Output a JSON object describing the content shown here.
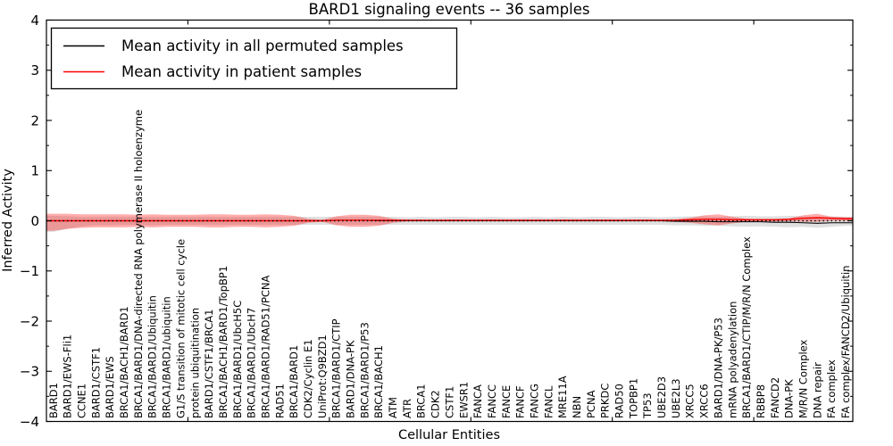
{
  "title": "BARD1 signaling events -- 36 samples",
  "legend": {
    "entries": [
      {
        "label": "Mean activity in all permuted samples",
        "color": "#000000"
      },
      {
        "label": "Mean activity in patient samples",
        "color": "#ff0000"
      }
    ],
    "position": "upper left"
  },
  "chart_data": {
    "type": "line",
    "title": "BARD1 signaling events -- 36 samples",
    "xlabel": "Cellular Entities",
    "ylabel": "Inferred Activity",
    "ylim": [
      -4,
      4
    ],
    "yticks": [
      -4,
      -3,
      -2,
      -1,
      0,
      1,
      2,
      3,
      4
    ],
    "y_minor_step": 0.5,
    "x_major_ticks": [
      10,
      20,
      30,
      40,
      50
    ],
    "grid": false,
    "zero_reference_line": {
      "value": 0,
      "style": "dotted",
      "color": "#000000"
    },
    "categories": [
      "BARD1",
      "BARD1/EWS-Fli1",
      "CCNE1",
      "BARD1/CSTF1",
      "BARD1/EWS",
      "BRCA1/BACH1/BARD1",
      "BRCA1/BARD1/DNA-directed RNA polymerase II holoenzyme",
      "BRCA1/BARD1/Ubiquitin",
      "BRCA1/BARD1/ubiquitin",
      "G1/S transition of mitotic cell cycle",
      "protein ubiquitination",
      "BARD1/CSTF1/BRCA1",
      "BRCA1/BACH1/BARD1/TopBP1",
      "BRCA1/BARD1/UbcH5C",
      "BRCA1/BARD1/UbcH7",
      "BRCA1/BARD1/RAD51/PCNA",
      "RAD51",
      "BRCA1/BARD1",
      "CDK2/Cyclin E1",
      "UniProt:Q9BZD1",
      "BRCA1/BARD1/CTIP",
      "BARD1/DNA-PK",
      "BRCA1/BARD1/P53",
      "BRCA1/BACH1",
      "ATM",
      "ATR",
      "BRCA1",
      "CDK2",
      "CSTF1",
      "EWSR1",
      "FANCA",
      "FANCC",
      "FANCE",
      "FANCF",
      "FANCG",
      "FANCL",
      "MRE11A",
      "NBN",
      "PCNA",
      "PRKDC",
      "RAD50",
      "TOPBP1",
      "TP53",
      "UBE2D3",
      "UBE2L3",
      "XRCC5",
      "XRCC6",
      "BARD1/DNA-PK/P53",
      "mRNA polyadenylation",
      "BRCA1/BARD1/CTIP/M/R/N Complex",
      "RBBP8",
      "FANCD2",
      "DNA-PK",
      "M/R/N Complex",
      "DNA repair",
      "FA complex",
      "FA complex/FANCD2/Ubiquitin"
    ],
    "series": [
      {
        "name": "Mean activity in all permuted samples",
        "color": "#000000",
        "values": [
          0,
          0,
          0,
          0,
          0,
          0,
          0,
          0,
          0,
          0,
          0,
          0,
          0,
          0,
          0,
          0,
          0,
          0,
          0,
          0,
          0.01,
          0.01,
          0.01,
          0,
          0,
          0,
          0,
          0,
          0,
          0,
          0,
          0,
          0,
          0,
          0,
          0,
          0,
          0,
          0,
          0,
          0,
          0,
          0,
          0,
          -0.01,
          -0.01,
          -0.01,
          -0.02,
          -0.02,
          -0.02,
          -0.02,
          -0.03,
          -0.03,
          -0.04,
          -0.05,
          -0.04,
          -0.04
        ]
      },
      {
        "name": "Mean activity in patient samples",
        "color": "#ff0000",
        "values": [
          0,
          0,
          0,
          0,
          0,
          0,
          0,
          0,
          0,
          0,
          0,
          0,
          0,
          0,
          0,
          0,
          0,
          0,
          0,
          0,
          0.01,
          0.01,
          0.01,
          0.01,
          0.01,
          0.01,
          0.01,
          0.01,
          0.01,
          0.01,
          0.01,
          0.01,
          0.01,
          0.01,
          0.01,
          0.01,
          0.01,
          0.01,
          0.01,
          0.01,
          0.01,
          0.01,
          0.01,
          0.01,
          0.01,
          0.02,
          0.03,
          0.03,
          0.02,
          0.02,
          0.02,
          0.02,
          0.03,
          0.05,
          0.06,
          0.05,
          0.04
        ]
      }
    ],
    "bands": [
      {
        "name": "permuted-samples-band",
        "color": "#999999",
        "opacity": 0.3,
        "upper": [
          0.1,
          0.09,
          0.08,
          0.08,
          0.08,
          0.08,
          0.08,
          0.08,
          0.08,
          0.08,
          0.08,
          0.08,
          0.08,
          0.08,
          0.08,
          0.08,
          0.08,
          0.08,
          0.08,
          0.08,
          0.08,
          0.08,
          0.08,
          0.08,
          0.08,
          0.07,
          0.08,
          0.07,
          0.08,
          0.08,
          0.07,
          0.08,
          0.07,
          0.07,
          0.08,
          0.07,
          0.08,
          0.07,
          0.08,
          0.08,
          0.07,
          0.08,
          0.08,
          0.07,
          0.08,
          0.09,
          0.09,
          0.08,
          0.09,
          0.1,
          0.09,
          0.09,
          0.1,
          0.09,
          0.08,
          0.09,
          0.08
        ],
        "lower": [
          -0.22,
          -0.16,
          -0.11,
          -0.09,
          -0.09,
          -0.08,
          -0.08,
          -0.09,
          -0.08,
          -0.08,
          -0.08,
          -0.08,
          -0.08,
          -0.08,
          -0.08,
          -0.08,
          -0.08,
          -0.08,
          -0.08,
          -0.08,
          -0.08,
          -0.08,
          -0.08,
          -0.08,
          -0.08,
          -0.08,
          -0.08,
          -0.08,
          -0.08,
          -0.08,
          -0.08,
          -0.08,
          -0.08,
          -0.08,
          -0.08,
          -0.08,
          -0.08,
          -0.08,
          -0.08,
          -0.08,
          -0.08,
          -0.08,
          -0.08,
          -0.08,
          -0.09,
          -0.09,
          -0.1,
          -0.1,
          -0.11,
          -0.12,
          -0.11,
          -0.12,
          -0.13,
          -0.12,
          -0.14,
          -0.12,
          -0.1
        ]
      },
      {
        "name": "patient-samples-band",
        "color": "#ff0000",
        "opacity": 0.32,
        "upper": [
          0.14,
          0.14,
          0.13,
          0.13,
          0.13,
          0.13,
          0.12,
          0.13,
          0.12,
          0.12,
          0.12,
          0.13,
          0.13,
          0.12,
          0.12,
          0.13,
          0.12,
          0.1,
          0.04,
          0.02,
          0.09,
          0.12,
          0.12,
          0.1,
          0.04,
          0.02,
          0.02,
          0.02,
          0.02,
          0.02,
          0.02,
          0.02,
          0.02,
          0.02,
          0.02,
          0.02,
          0.02,
          0.02,
          0.02,
          0.02,
          0.02,
          0.02,
          0.02,
          0.02,
          0.03,
          0.06,
          0.11,
          0.13,
          0.08,
          0.04,
          0.03,
          0.03,
          0.05,
          0.11,
          0.14,
          0.08,
          0.07
        ],
        "lower": [
          -0.2,
          -0.16,
          -0.14,
          -0.13,
          -0.13,
          -0.13,
          -0.12,
          -0.13,
          -0.12,
          -0.12,
          -0.12,
          -0.13,
          -0.13,
          -0.12,
          -0.12,
          -0.13,
          -0.12,
          -0.1,
          -0.04,
          -0.02,
          -0.09,
          -0.12,
          -0.12,
          -0.1,
          -0.04,
          -0.01,
          -0.01,
          -0.01,
          -0.01,
          -0.01,
          -0.01,
          -0.01,
          -0.01,
          -0.01,
          -0.01,
          -0.01,
          -0.01,
          -0.01,
          -0.01,
          -0.01,
          -0.01,
          -0.01,
          -0.01,
          -0.01,
          -0.02,
          -0.04,
          -0.07,
          -0.09,
          -0.05,
          -0.02,
          -0.01,
          -0.01,
          -0.01,
          -0.02,
          -0.02,
          0.0,
          0.0
        ]
      }
    ]
  }
}
